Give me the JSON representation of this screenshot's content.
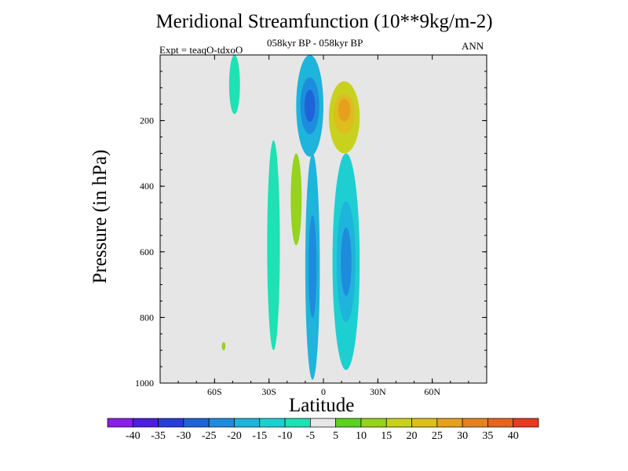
{
  "chart_data": {
    "type": "heatmap",
    "title": "Meridional Streamfunction (10**9kg/m-2)",
    "subtitle": "058kyr BP - 058kyr BP",
    "expt_label": "Expt = teaqO-tdxoO",
    "season": "ANN",
    "xlabel": "Latitude",
    "ylabel": "Pressure (in hPa)",
    "xlim": [
      -90,
      90
    ],
    "ylim": [
      1000,
      0
    ],
    "x_ticks": [
      {
        "value": -60,
        "label": "60S"
      },
      {
        "value": -30,
        "label": "30S"
      },
      {
        "value": 0,
        "label": "0"
      },
      {
        "value": 30,
        "label": "30N"
      },
      {
        "value": 60,
        "label": "60N"
      }
    ],
    "y_ticks": [
      {
        "value": 200,
        "label": "200"
      },
      {
        "value": 400,
        "label": "400"
      },
      {
        "value": 600,
        "label": "600"
      },
      {
        "value": 800,
        "label": "800"
      },
      {
        "value": 1000,
        "label": "1000"
      }
    ],
    "background_color": "#e6e6e6",
    "colorbar": {
      "colors": [
        "#8a1ee6",
        "#4b1ee0",
        "#2a3cd8",
        "#1e64d8",
        "#1e8cdc",
        "#1eb4dc",
        "#1ecfd2",
        "#1ee1b4",
        "#e6e6e6",
        "#5ad21e",
        "#96d21e",
        "#c8d21e",
        "#dcbe1e",
        "#e6a01e",
        "#e6821e",
        "#e6641e",
        "#e63c1e"
      ],
      "labels": [
        "-40",
        "-35",
        "-30",
        "-25",
        "-20",
        "-15",
        "-10",
        "-5",
        "5",
        "10",
        "15",
        "20",
        "25",
        "30",
        "35",
        "40"
      ]
    },
    "features": [
      {
        "name": "sh-polar-cell-band",
        "value": -10,
        "lat_range": [
          -52,
          -46
        ],
        "p_range": [
          0,
          180
        ]
      },
      {
        "name": "sh-ferrel-band",
        "value": -10,
        "lat_range": [
          -31,
          -24
        ],
        "p_range": [
          260,
          900
        ]
      },
      {
        "name": "sh-positive-band",
        "value": 10,
        "lat_range": [
          -18,
          -12
        ],
        "p_range": [
          300,
          580
        ]
      },
      {
        "name": "sh-positive-spot",
        "value": 10,
        "lat_range": [
          -56,
          -54
        ],
        "p_range": [
          875,
          900
        ]
      },
      {
        "name": "tropical-negative-core-upper",
        "value": -20,
        "lat_range": [
          -15,
          0
        ],
        "p_range": [
          0,
          310
        ],
        "min_value": -30
      },
      {
        "name": "tropical-negative-core-lower",
        "value": -20,
        "lat_range": [
          -10,
          -2
        ],
        "p_range": [
          300,
          990
        ],
        "min_value": -25
      },
      {
        "name": "nh-negative-band",
        "value": -15,
        "lat_range": [
          5,
          20
        ],
        "p_range": [
          300,
          960
        ],
        "min_value": -25
      },
      {
        "name": "nh-positive-core",
        "value": 15,
        "lat_range": [
          3,
          20
        ],
        "p_range": [
          80,
          300
        ],
        "max_value": 25
      }
    ]
  }
}
